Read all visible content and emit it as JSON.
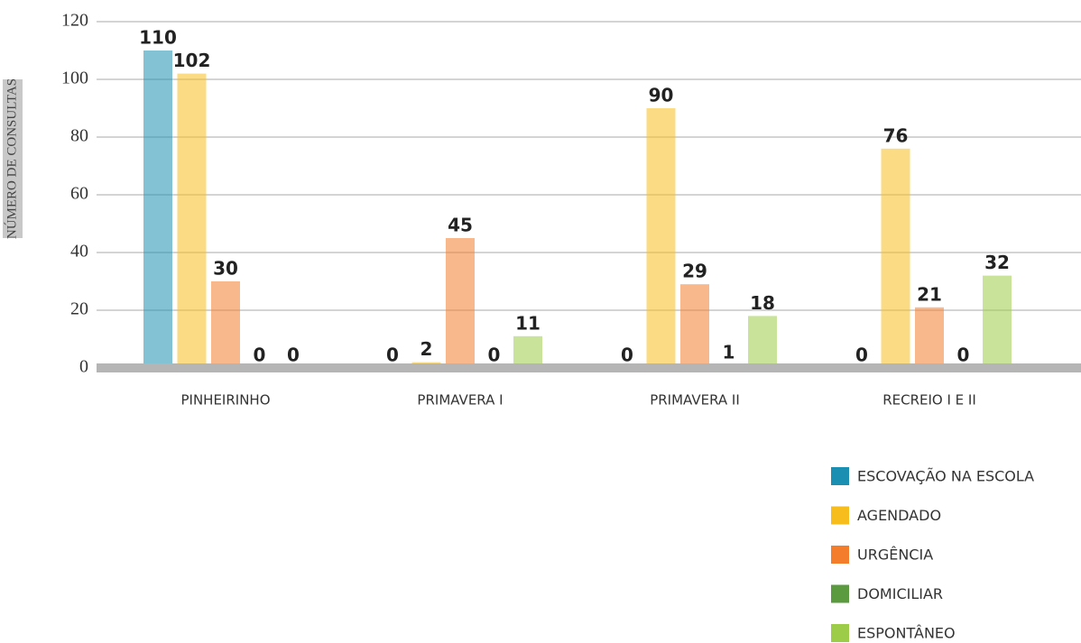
{
  "chart_data": {
    "type": "bar",
    "y_label": "NÚMERO DE CONSULTAS",
    "categories": [
      "PINHEIRINHO",
      "PRIMAVERA I",
      "PRIMAVERA II",
      "RECREIO I E II"
    ],
    "series": [
      {
        "name": "ESCOVAÇÃO NA ESCOLA",
        "color": "#1b8fb1",
        "values": [
          110,
          0,
          0,
          0
        ]
      },
      {
        "name": "AGENDADO",
        "color": "#f7bd1d",
        "values": [
          102,
          2,
          90,
          76
        ]
      },
      {
        "name": "URGÊNCIA",
        "color": "#f47d2c",
        "values": [
          30,
          45,
          29,
          21
        ]
      },
      {
        "name": "DOMICILIAR",
        "color": "#5b9a3f",
        "values": [
          0,
          0,
          1,
          0
        ]
      },
      {
        "name": "ESPONTÂNEO",
        "color": "#9ccc48",
        "values": [
          0,
          11,
          18,
          32
        ]
      }
    ],
    "ylim": [
      0,
      120
    ],
    "yticks": [
      0,
      20,
      40,
      60,
      80,
      100,
      120
    ],
    "grid": true,
    "legend": "bottom-right"
  }
}
